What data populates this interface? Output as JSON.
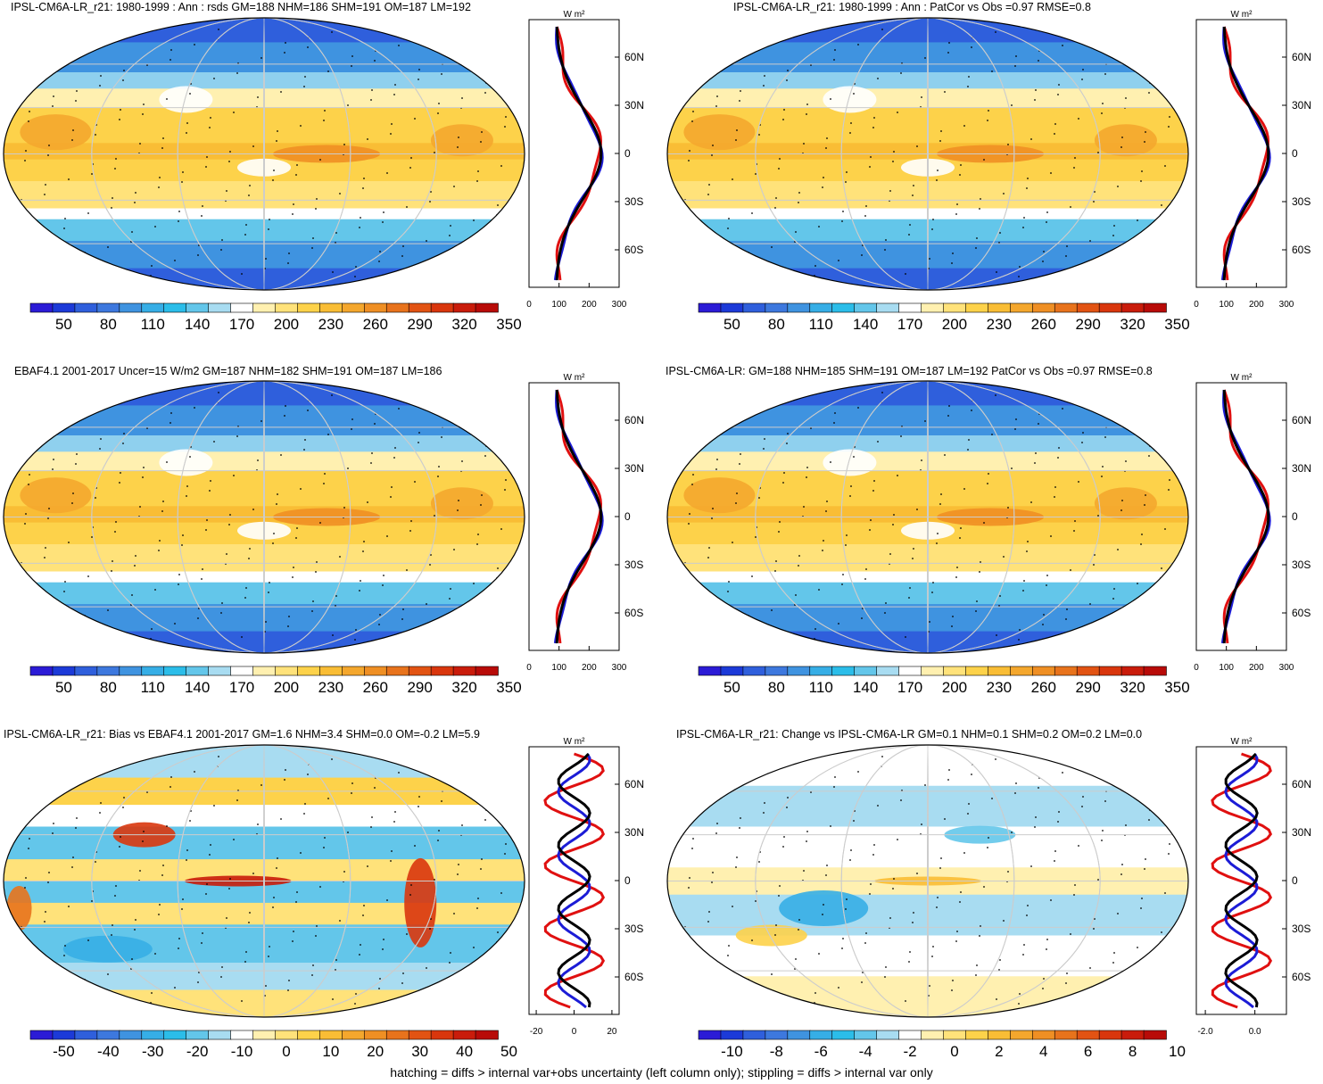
{
  "footer": "hatching = diffs > internal var+obs uncertainty (left column only); stippling = diffs > internal var only",
  "profile_units": "W m²",
  "lat_labels": [
    "60N",
    "30N",
    "0",
    "30S",
    "60S"
  ],
  "colors": {
    "line_model": "#000000",
    "line_ref": "#1c1cd6",
    "line_obs": "#e01010",
    "map_blue": "#3d8fe0",
    "map_orange": "#f0a830"
  },
  "palette": [
    "#2b1bd6",
    "#1c3ad8",
    "#2f5fdc",
    "#3d78de",
    "#3f93e0",
    "#36aee6",
    "#2bbde9",
    "#63c6ea",
    "#a8dcf1",
    "#ffffff",
    "#fff0b0",
    "#ffe27a",
    "#fdd24a",
    "#f9bd35",
    "#f4a72d",
    "#ef8f24",
    "#e8731c",
    "#e25313",
    "#d9360d",
    "#c91c0b",
    "#b80b08"
  ],
  "panels": [
    {
      "id": "p1",
      "title": "IPSL-CM6A-LR_r21: 1980-1999 : Ann : rsds GM=188 NHM=186 SHM=191 OM=187 LM=192",
      "cbar": [
        "50",
        "80",
        "110",
        "140",
        "170",
        "200",
        "230",
        "260",
        "290",
        "320",
        "350"
      ],
      "profile_ticks": [
        "0",
        "100",
        "200",
        "300"
      ]
    },
    {
      "id": "p2",
      "title": "IPSL-CM6A-LR_r21: 1980-1999 : Ann : PatCor vs Obs =0.97 RMSE=0.8",
      "cbar": [
        "50",
        "80",
        "110",
        "140",
        "170",
        "200",
        "230",
        "260",
        "290",
        "320",
        "350"
      ],
      "profile_ticks": [
        "0",
        "100",
        "200",
        "300"
      ]
    },
    {
      "id": "p3",
      "title": "EBAF4.1 2001-2017 Uncer=15 W/m2 GM=187 NHM=182 SHM=191 OM=187 LM=186",
      "cbar": [
        "50",
        "80",
        "110",
        "140",
        "170",
        "200",
        "230",
        "260",
        "290",
        "320",
        "350"
      ],
      "profile_ticks": [
        "0",
        "100",
        "200",
        "300"
      ]
    },
    {
      "id": "p4",
      "title": "IPSL-CM6A-LR: GM=188 NHM=185 SHM=191 OM=187 LM=192 PatCor vs Obs =0.97 RMSE=0.8",
      "cbar": [
        "50",
        "80",
        "110",
        "140",
        "170",
        "200",
        "230",
        "260",
        "290",
        "320",
        "350"
      ],
      "profile_ticks": [
        "0",
        "100",
        "200",
        "300"
      ]
    },
    {
      "id": "p5",
      "title": "IPSL-CM6A-LR_r21: Bias vs EBAF4.1 2001-2017 GM=1.6 NHM=3.4 SHM=0.0 OM=-0.2 LM=5.9",
      "cbar": [
        "-50",
        "-40",
        "-30",
        "-20",
        "-10",
        "0",
        "10",
        "20",
        "30",
        "40",
        "50"
      ],
      "profile_ticks": [
        "-20",
        "0",
        "20"
      ]
    },
    {
      "id": "p6",
      "title": "IPSL-CM6A-LR_r21: Change vs IPSL-CM6A-LR GM=0.1 NHM=0.1 SHM=0.2 OM=0.2 LM=0.0",
      "cbar": [
        "-10",
        "-8",
        "-6",
        "-4",
        "-2",
        "0",
        "2",
        "4",
        "6",
        "8",
        "10"
      ],
      "profile_ticks": [
        "-2.0",
        "0.0"
      ]
    }
  ]
}
